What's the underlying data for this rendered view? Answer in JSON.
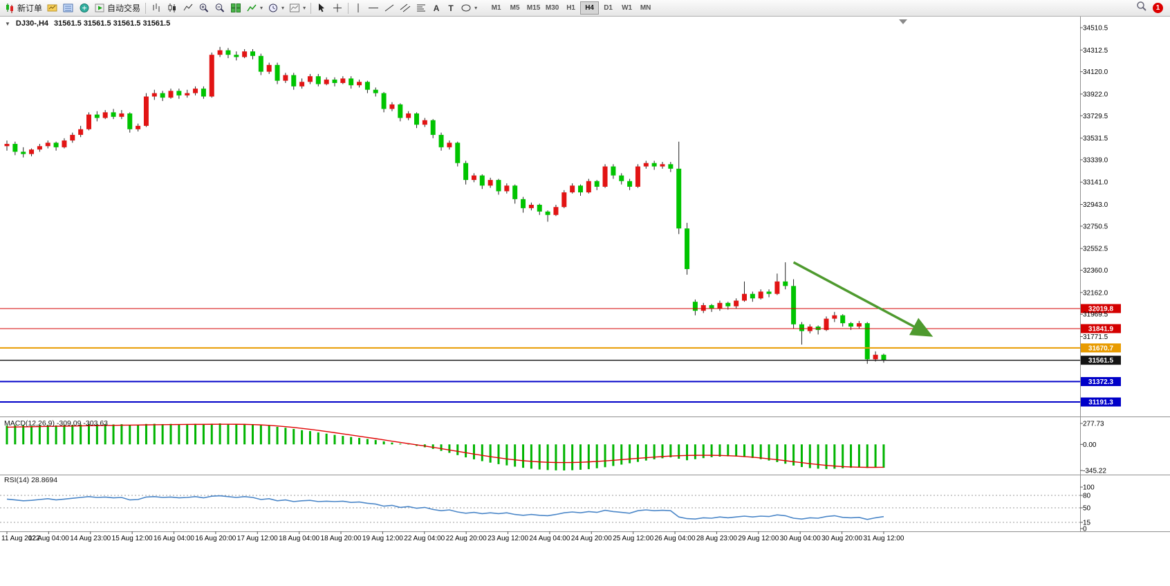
{
  "toolbar": {
    "new_order_label": "新订单",
    "auto_trading_label": "自动交易",
    "timeframes": [
      "M1",
      "M5",
      "M15",
      "M30",
      "H1",
      "H4",
      "D1",
      "W1",
      "MN"
    ],
    "active_timeframe": "H4",
    "notification_count": "1"
  },
  "icons": {
    "dropdown_arrow": "▾",
    "collapse_arrow": "▼",
    "text_tool": "A",
    "label_tool": "T"
  },
  "chart": {
    "symbol_timeframe": "DJ30-,H4",
    "ohlc_text": "31561.5 31561.5 31561.5 31561.5",
    "colors": {
      "up": "#e21414",
      "down": "#00c400",
      "macd_bar": "#00b400",
      "macd_signal": "#e00000",
      "rsi_line": "#4a86c8",
      "level_red": "#d40000",
      "level_orange": "#e89b00",
      "level_black": "#141414",
      "level_blue": "#0000c8"
    },
    "y_axis_ticks": [
      "34510.5",
      "34312.5",
      "34120.0",
      "33922.0",
      "33729.5",
      "33531.5",
      "33339.0",
      "33141.0",
      "32943.0",
      "32750.5",
      "32552.5",
      "32360.0",
      "32162.0",
      "31969.5",
      "31771.5"
    ],
    "levels": [
      {
        "price": 32019.8,
        "label": "32019.8",
        "style": "red"
      },
      {
        "price": 31841.9,
        "label": "31841.9",
        "style": "red"
      },
      {
        "price": 31670.7,
        "label": "31670.7",
        "style": "orange"
      },
      {
        "price": 31561.5,
        "label": "31561.5",
        "style": "black"
      },
      {
        "price": 31372.3,
        "label": "31372.3",
        "style": "blue"
      },
      {
        "price": 31191.3,
        "label": "31191.3",
        "style": "blue"
      }
    ]
  },
  "macd": {
    "label": "MACD(12,26,9) -309.09 -303.63",
    "axis": [
      "277.73",
      "0.00",
      "-345.22"
    ]
  },
  "rsi": {
    "label": "RSI(14) 28.8694",
    "axis": [
      "100",
      "80",
      "50",
      "15",
      "0"
    ]
  },
  "chart_data": {
    "type": "candlestick",
    "symbol": "DJ30-",
    "timeframe": "H4",
    "title": "DJ30-,H4",
    "price_range": [
      31140,
      34560
    ],
    "x_labels": [
      "11 Aug 2022",
      "12 Aug 04:00",
      "14 Aug 23:00",
      "15 Aug 12:00",
      "16 Aug 04:00",
      "16 Aug 20:00",
      "17 Aug 12:00",
      "18 Aug 04:00",
      "18 Aug 20:00",
      "19 Aug 12:00",
      "22 Aug 04:00",
      "22 Aug 20:00",
      "23 Aug 12:00",
      "24 Aug 04:00",
      "24 Aug 20:00",
      "25 Aug 12:00",
      "26 Aug 04:00",
      "28 Aug 23:00",
      "29 Aug 12:00",
      "30 Aug 04:00",
      "30 Aug 20:00",
      "31 Aug 12:00"
    ],
    "candles": [
      [
        33460,
        33510,
        33420,
        33480
      ],
      [
        33480,
        33500,
        33380,
        33410
      ],
      [
        33410,
        33450,
        33360,
        33390
      ],
      [
        33390,
        33440,
        33370,
        33430
      ],
      [
        33430,
        33480,
        33410,
        33460
      ],
      [
        33460,
        33510,
        33440,
        33490
      ],
      [
        33490,
        33500,
        33420,
        33450
      ],
      [
        33450,
        33530,
        33440,
        33510
      ],
      [
        33510,
        33580,
        33490,
        33560
      ],
      [
        33560,
        33640,
        33540,
        33610
      ],
      [
        33610,
        33760,
        33600,
        33740
      ],
      [
        33740,
        33770,
        33680,
        33710
      ],
      [
        33710,
        33780,
        33700,
        33760
      ],
      [
        33760,
        33790,
        33700,
        33720
      ],
      [
        33720,
        33780,
        33700,
        33750
      ],
      [
        33750,
        33760,
        33580,
        33610
      ],
      [
        33610,
        33660,
        33590,
        33640
      ],
      [
        33640,
        33930,
        33630,
        33900
      ],
      [
        33900,
        33960,
        33870,
        33930
      ],
      [
        33930,
        33950,
        33860,
        33890
      ],
      [
        33890,
        33970,
        33880,
        33950
      ],
      [
        33950,
        33970,
        33880,
        33910
      ],
      [
        33910,
        33960,
        33890,
        33930
      ],
      [
        33930,
        33990,
        33910,
        33970
      ],
      [
        33970,
        33990,
        33880,
        33900
      ],
      [
        33900,
        34290,
        33890,
        34270
      ],
      [
        34270,
        34340,
        34250,
        34310
      ],
      [
        34310,
        34330,
        34240,
        34270
      ],
      [
        34270,
        34300,
        34220,
        34250
      ],
      [
        34250,
        34320,
        34240,
        34300
      ],
      [
        34300,
        34320,
        34230,
        34260
      ],
      [
        34260,
        34280,
        34090,
        34120
      ],
      [
        34120,
        34200,
        34100,
        34180
      ],
      [
        34180,
        34200,
        34010,
        34040
      ],
      [
        34040,
        34110,
        34020,
        34090
      ],
      [
        34090,
        34110,
        33960,
        33990
      ],
      [
        33990,
        34060,
        33970,
        34030
      ],
      [
        34030,
        34100,
        34010,
        34080
      ],
      [
        34080,
        34100,
        33990,
        34010
      ],
      [
        34010,
        34070,
        34000,
        34050
      ],
      [
        34050,
        34070,
        33990,
        34020
      ],
      [
        34020,
        34080,
        34010,
        34060
      ],
      [
        34060,
        34080,
        33970,
        34000
      ],
      [
        34000,
        34050,
        33980,
        34030
      ],
      [
        34030,
        34040,
        33930,
        33960
      ],
      [
        33960,
        33980,
        33900,
        33930
      ],
      [
        33930,
        33940,
        33760,
        33790
      ],
      [
        33790,
        33850,
        33770,
        33830
      ],
      [
        33830,
        33840,
        33680,
        33710
      ],
      [
        33710,
        33770,
        33690,
        33750
      ],
      [
        33750,
        33760,
        33620,
        33650
      ],
      [
        33650,
        33710,
        33630,
        33690
      ],
      [
        33690,
        33700,
        33530,
        33560
      ],
      [
        33560,
        33580,
        33420,
        33450
      ],
      [
        33450,
        33510,
        33430,
        33490
      ],
      [
        33490,
        33500,
        33280,
        33310
      ],
      [
        33310,
        33330,
        33120,
        33160
      ],
      [
        33160,
        33220,
        33140,
        33200
      ],
      [
        33200,
        33210,
        33080,
        33110
      ],
      [
        33110,
        33180,
        33090,
        33160
      ],
      [
        33160,
        33170,
        33030,
        33060
      ],
      [
        33060,
        33130,
        33040,
        33110
      ],
      [
        33110,
        33120,
        32950,
        32990
      ],
      [
        32990,
        33010,
        32870,
        32910
      ],
      [
        32910,
        32960,
        32890,
        32940
      ],
      [
        32940,
        32950,
        32850,
        32880
      ],
      [
        32880,
        32890,
        32790,
        32850
      ],
      [
        32850,
        32940,
        32840,
        32920
      ],
      [
        32920,
        33070,
        32910,
        33050
      ],
      [
        33050,
        33130,
        33040,
        33110
      ],
      [
        33110,
        33120,
        33020,
        33050
      ],
      [
        33050,
        33170,
        33040,
        33150
      ],
      [
        33150,
        33160,
        33070,
        33100
      ],
      [
        33100,
        33300,
        33090,
        33280
      ],
      [
        33280,
        33300,
        33170,
        33200
      ],
      [
        33200,
        33220,
        33120,
        33150
      ],
      [
        33150,
        33170,
        33070,
        33100
      ],
      [
        33100,
        33300,
        33090,
        33280
      ],
      [
        33280,
        33330,
        33260,
        33310
      ],
      [
        33310,
        33330,
        33250,
        33280
      ],
      [
        33280,
        33320,
        33260,
        33300
      ],
      [
        33300,
        33320,
        33230,
        33260
      ],
      [
        33260,
        33500,
        32680,
        32730
      ],
      [
        32730,
        32780,
        32320,
        32370
      ],
      [
        32080,
        32100,
        31960,
        32000
      ],
      [
        32000,
        32070,
        31980,
        32050
      ],
      [
        32050,
        32060,
        31990,
        32020
      ],
      [
        32020,
        32090,
        32000,
        32070
      ],
      [
        32070,
        32080,
        32010,
        32040
      ],
      [
        32040,
        32110,
        32020,
        32090
      ],
      [
        32090,
        32260,
        32080,
        32150
      ],
      [
        32150,
        32170,
        32080,
        32110
      ],
      [
        32110,
        32190,
        32100,
        32170
      ],
      [
        32170,
        32190,
        32120,
        32150
      ],
      [
        32150,
        32330,
        32140,
        32260
      ],
      [
        32260,
        32430,
        32190,
        32220
      ],
      [
        32220,
        32280,
        31840,
        31880
      ],
      [
        31880,
        31900,
        31700,
        31820
      ],
      [
        31820,
        31880,
        31800,
        31860
      ],
      [
        31860,
        31870,
        31790,
        31830
      ],
      [
        31830,
        31950,
        31820,
        31930
      ],
      [
        31930,
        31990,
        31900,
        31960
      ],
      [
        31960,
        31970,
        31860,
        31890
      ],
      [
        31890,
        31900,
        31830,
        31860
      ],
      [
        31860,
        31910,
        31840,
        31890
      ],
      [
        31890,
        31900,
        31530,
        31570
      ],
      [
        31570,
        31640,
        31550,
        31610
      ],
      [
        31610,
        31620,
        31540,
        31561.5
      ]
    ],
    "indicators": {
      "macd": {
        "params": "12,26,9",
        "range": [
          -345.22,
          277.73
        ],
        "histogram": [
          248,
          252,
          250,
          246,
          250,
          254,
          251,
          255,
          258,
          262,
          268,
          265,
          268,
          264,
          267,
          258,
          260,
          270,
          272,
          268,
          271,
          267,
          269,
          272,
          266,
          274,
          277.73,
          272,
          268,
          270,
          264,
          252,
          246,
          232,
          220,
          204,
          188,
          176,
          158,
          142,
          126,
          112,
          98,
          86,
          72,
          58,
          40,
          24,
          10,
          -4,
          -20,
          -38,
          -60,
          -86,
          -112,
          -142,
          -172,
          -198,
          -222,
          -242,
          -262,
          -278,
          -295,
          -310,
          -322,
          -332,
          -340,
          -344,
          -345.22,
          -342,
          -336,
          -328,
          -316,
          -302,
          -286,
          -268,
          -250,
          -232,
          -214,
          -198,
          -184,
          -172,
          -190,
          -210,
          -196,
          -182,
          -170,
          -162,
          -158,
          -160,
          -168,
          -180,
          -196,
          -214,
          -234,
          -256,
          -280,
          -300,
          -314,
          -322,
          -326,
          -322,
          -316,
          -310,
          -306,
          -312,
          -308,
          -309.09
        ],
        "signal": [
          228,
          230,
          232,
          234,
          236,
          238,
          240,
          241,
          243,
          245,
          247,
          249,
          251,
          252,
          254,
          255,
          256,
          258,
          260,
          261,
          262,
          263,
          264,
          265,
          265,
          266,
          267,
          267,
          266,
          265,
          262,
          258,
          252,
          244,
          235,
          224,
          212,
          199,
          185,
          170,
          155,
          140,
          124,
          108,
          92,
          76,
          59,
          42,
          26,
          10,
          -6,
          -22,
          -39,
          -56,
          -74,
          -92,
          -110,
          -128,
          -146,
          -163,
          -178,
          -192,
          -205,
          -216,
          -225,
          -232,
          -237,
          -240,
          -241,
          -240,
          -237,
          -232,
          -226,
          -219,
          -211,
          -202,
          -193,
          -184,
          -176,
          -168,
          -161,
          -155,
          -150,
          -147,
          -145,
          -144,
          -145,
          -147,
          -150,
          -155,
          -162,
          -170,
          -180,
          -191,
          -203,
          -216,
          -229,
          -242,
          -255,
          -267,
          -278,
          -287,
          -294,
          -299,
          -302,
          -304,
          -304,
          -303.63
        ]
      },
      "rsi": {
        "params": "14",
        "range": [
          0,
          100
        ],
        "levels": [
          80,
          50,
          15
        ],
        "values": [
          71,
          69,
          67,
          68,
          70,
          72,
          69,
          71,
          73,
          75,
          77,
          75,
          76,
          74,
          75,
          69,
          70,
          76,
          77,
          75,
          76,
          74,
          75,
          77,
          74,
          78,
          79,
          77,
          75,
          77,
          75,
          70,
          72,
          67,
          69,
          65,
          67,
          68,
          65,
          66,
          65,
          66,
          63,
          64,
          61,
          59,
          54,
          56,
          51,
          53,
          49,
          51,
          46,
          43,
          45,
          40,
          37,
          39,
          36,
          38,
          36,
          38,
          34,
          32,
          34,
          32,
          31,
          34,
          38,
          40,
          38,
          41,
          39,
          44,
          41,
          39,
          37,
          43,
          45,
          43,
          44,
          43,
          28,
          24,
          23,
          26,
          25,
          28,
          26,
          28,
          30,
          28,
          30,
          29,
          33,
          31,
          25,
          23,
          26,
          25,
          29,
          31,
          27,
          26,
          27,
          22,
          26,
          28.87
        ]
      }
    },
    "annotations": [
      {
        "type": "arrow",
        "color": "#4e9a2e",
        "from_index": 96,
        "from_price": 32430,
        "to_index": 112.5,
        "to_price": 31790
      }
    ]
  }
}
